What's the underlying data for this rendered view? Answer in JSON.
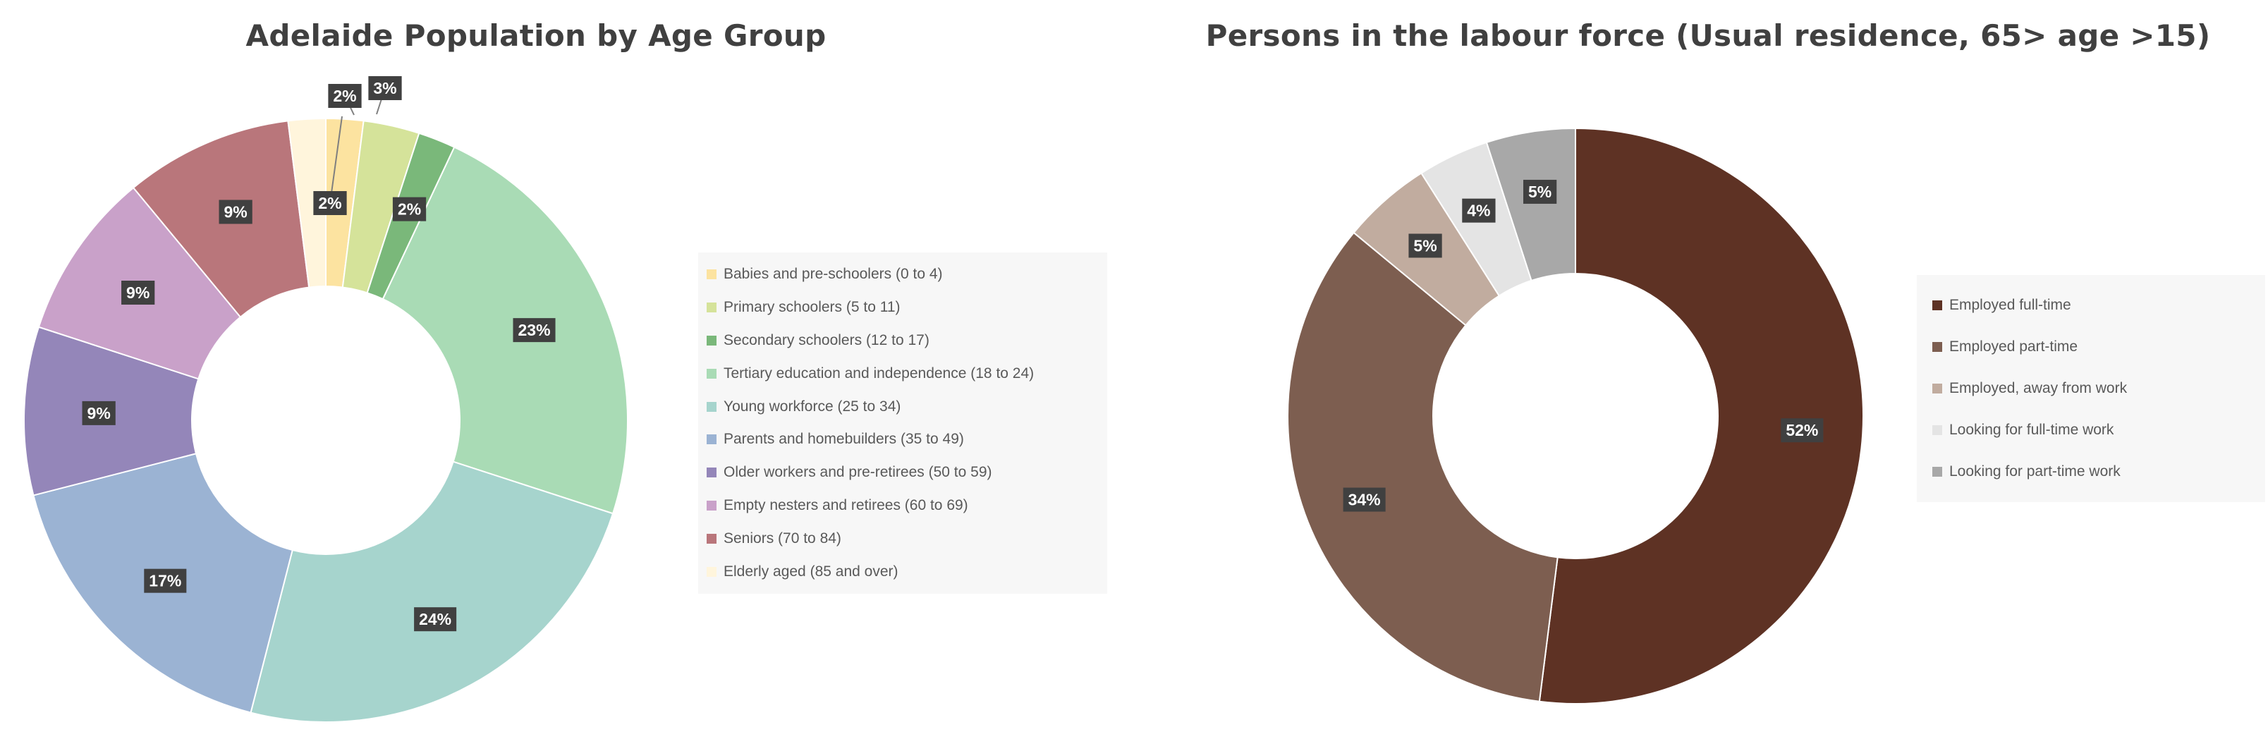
{
  "chart_data": [
    {
      "type": "pie",
      "title": "Adelaide Population by Age Group",
      "categories": [
        "Babies and pre-schoolers (0 to 4)",
        "Primary schoolers (5 to 11)",
        "Secondary schoolers (12 to 17)",
        "Tertiary education and independence (18 to 24)",
        "Young workforce (25 to 34)",
        "Parents and homebuilders (35 to 49)",
        "Older workers and pre-retirees (50 to 59)",
        "Empty nesters and retirees (60 to 69)",
        "Seniors (70 to 84)",
        "Elderly aged (85 and over)"
      ],
      "values": [
        2,
        3,
        2,
        23,
        24,
        17,
        9,
        9,
        9,
        2
      ],
      "data_labels": [
        "2%",
        "3%",
        "2%",
        "23%",
        "24%",
        "17%",
        "9%",
        "9%",
        "9%",
        "2%"
      ],
      "colors": [
        "#fce3a0",
        "#d5e39a",
        "#7ab87a",
        "#a9dbb5",
        "#a6d4cd",
        "#9bb3d3",
        "#9486b9",
        "#c9a1c9",
        "#b9767b",
        "#fff5dc"
      ],
      "legend_position": "right",
      "donut": true
    },
    {
      "type": "pie",
      "title": "Persons in the labour force (Usual residence, 65> age >15)",
      "categories": [
        "Employed full-time",
        "Employed part-time",
        "Employed, away from work",
        "Looking for full-time work",
        "Looking for part-time work"
      ],
      "values": [
        52,
        34,
        5,
        4,
        5
      ],
      "data_labels": [
        "52%",
        "34%",
        "5%",
        "4%",
        "5%"
      ],
      "colors": [
        "#5e3224",
        "#7d5e50",
        "#c1ac9f",
        "#e4e4e4",
        "#a8a8a8"
      ],
      "legend_position": "right",
      "donut": true
    }
  ]
}
